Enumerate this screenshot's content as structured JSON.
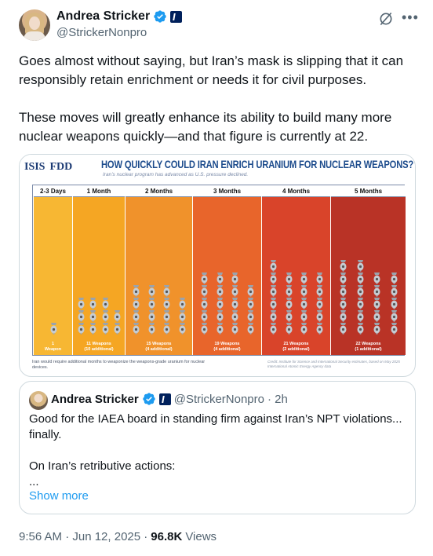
{
  "author": {
    "display_name": "Andrea Stricker",
    "handle": "@StrickerNonpro"
  },
  "tweet": {
    "paragraphs": [
      "Goes almost without saying, but Iran’s mask is slipping that it can responsibly retain enrichment or needs it for civil purposes.",
      "These moves will greatly enhance its ability to build many more nuclear weapons quickly—and that figure is currently at 22."
    ],
    "timestamp": "9:56 AM · Jun 12, 2025 ·",
    "views_count": "96.8K",
    "views_label": "Views"
  },
  "media": {
    "logo_isis": "ISIS",
    "logo_fdd": "FDD",
    "title": "HOW QUICKLY COULD IRAN ENRICH URANIUM FOR NUCLEAR WEAPONS?",
    "subtitle": "Iran’s nuclear program has advanced as U.S. pressure declined.",
    "footnote": "Iran would require additional months to weaponize the weapons-grade uranium for nuclear devices.",
    "credit": "Credit: Institute for Science and International Security estimates, based on May 2025 International Atomic Energy Agency data"
  },
  "chart_data": {
    "type": "bar",
    "title": "HOW QUICKLY COULD IRAN ENRICH URANIUM FOR NUCLEAR WEAPONS?",
    "categories": [
      "2-3 Days",
      "1 Month",
      "2 Months",
      "3 Months",
      "4 Months",
      "5 Months"
    ],
    "values": [
      1,
      11,
      15,
      19,
      21,
      22
    ],
    "value_labels": [
      [
        "1",
        "Weapon"
      ],
      [
        "11 Weapons",
        "(10 additional)"
      ],
      [
        "15 Weapons",
        "(4 additional)"
      ],
      [
        "19 Weapons",
        "(4 additional)"
      ],
      [
        "21 Weapons",
        "(2 additional)"
      ],
      [
        "22 Weapons",
        "(1 additional)"
      ]
    ],
    "colors": [
      "#f7b733",
      "#f5a623",
      "#f0922b",
      "#e8652b",
      "#d9442a",
      "#b93326"
    ]
  },
  "quote": {
    "display_name": "Andrea Stricker",
    "handle": "@StrickerNonpro",
    "time": "· 2h",
    "paragraphs": [
      "Good for the IAEA board in standing firm against Iran’s NPT violations... finally.",
      "On Iran’s retributive actions:"
    ],
    "ellipsis": "...",
    "show_more": "Show more"
  }
}
